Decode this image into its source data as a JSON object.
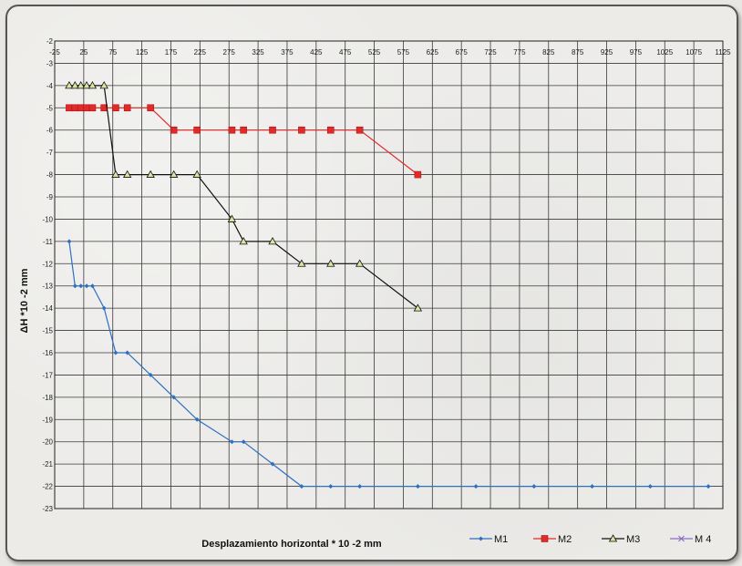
{
  "chart_data": {
    "type": "line",
    "xlabel": "Desplazamiento horizontal * 10 -2 mm",
    "ylabel": "ΔH *10 -2 mm",
    "xlim": [
      -25,
      1125
    ],
    "ylim": [
      -23,
      -2
    ],
    "x_ticks": [
      -25,
      25,
      75,
      125,
      175,
      225,
      275,
      325,
      375,
      425,
      475,
      525,
      575,
      625,
      675,
      725,
      775,
      825,
      875,
      925,
      975,
      1025,
      1075,
      1125
    ],
    "y_ticks": [
      -2,
      -3,
      -4,
      -5,
      -6,
      -7,
      -8,
      -9,
      -10,
      -11,
      -12,
      -13,
      -14,
      -15,
      -16,
      -17,
      -18,
      -19,
      -20,
      -21,
      -22,
      -23
    ],
    "grid": true,
    "legend_position": "bottom-right",
    "series": [
      {
        "name": "M1",
        "color": "#2e6fc0",
        "marker": "diamond",
        "points": [
          [
            0,
            -11
          ],
          [
            10,
            -13
          ],
          [
            20,
            -13
          ],
          [
            30,
            -13
          ],
          [
            40,
            -13
          ],
          [
            60,
            -14
          ],
          [
            80,
            -16
          ],
          [
            100,
            -16
          ],
          [
            140,
            -17
          ],
          [
            180,
            -18
          ],
          [
            220,
            -19
          ],
          [
            280,
            -20
          ],
          [
            300,
            -20
          ],
          [
            350,
            -21
          ],
          [
            400,
            -22
          ],
          [
            450,
            -22
          ],
          [
            500,
            -22
          ],
          [
            600,
            -22
          ],
          [
            700,
            -22
          ],
          [
            800,
            -22
          ],
          [
            900,
            -22
          ],
          [
            1000,
            -22
          ],
          [
            1100,
            -22
          ]
        ]
      },
      {
        "name": "M2",
        "color": "#e02b2b",
        "marker": "square",
        "points": [
          [
            0,
            -5
          ],
          [
            10,
            -5
          ],
          [
            20,
            -5
          ],
          [
            30,
            -5
          ],
          [
            40,
            -5
          ],
          [
            60,
            -5
          ],
          [
            80,
            -5
          ],
          [
            100,
            -5
          ],
          [
            140,
            -5
          ],
          [
            180,
            -6
          ],
          [
            220,
            -6
          ],
          [
            280,
            -6
          ],
          [
            300,
            -6
          ],
          [
            350,
            -6
          ],
          [
            400,
            -6
          ],
          [
            450,
            -6
          ],
          [
            500,
            -6
          ],
          [
            600,
            -8
          ]
        ]
      },
      {
        "name": "M3",
        "color": "#111111",
        "marker": "triangle",
        "points": [
          [
            0,
            -4
          ],
          [
            10,
            -4
          ],
          [
            20,
            -4
          ],
          [
            30,
            -4
          ],
          [
            40,
            -4
          ],
          [
            60,
            -4
          ],
          [
            80,
            -8
          ],
          [
            100,
            -8
          ],
          [
            140,
            -8
          ],
          [
            180,
            -8
          ],
          [
            220,
            -8
          ],
          [
            280,
            -10
          ],
          [
            300,
            -11
          ],
          [
            350,
            -11
          ],
          [
            400,
            -12
          ],
          [
            450,
            -12
          ],
          [
            500,
            -12
          ],
          [
            600,
            -14
          ]
        ]
      },
      {
        "name": "M 4",
        "color": "#8a6fc0",
        "marker": "x",
        "points": []
      }
    ]
  }
}
